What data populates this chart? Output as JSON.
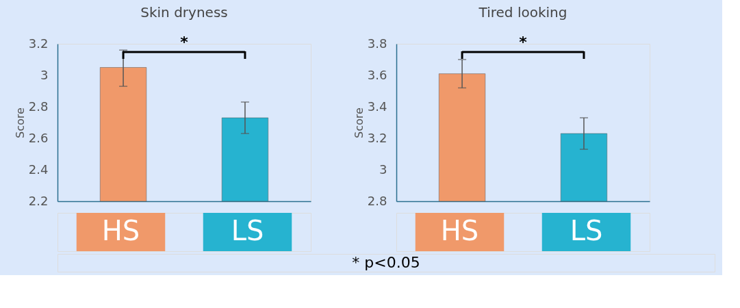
{
  "chart_data": [
    {
      "type": "bar",
      "title": "Skin dryness",
      "ylabel": "Score",
      "categories": [
        "HS",
        "LS"
      ],
      "values": [
        3.05,
        2.73
      ],
      "colors": [
        "#f0996a",
        "#26b3d0"
      ],
      "errors": [
        [
          2.93,
          3.16
        ],
        [
          2.63,
          2.83
        ]
      ],
      "ylim": [
        2.2,
        3.2
      ],
      "yticks": [
        2.2,
        2.4,
        2.6,
        2.8,
        3,
        3.2
      ],
      "grid": false,
      "legend": false,
      "annotations": [
        "*"
      ]
    },
    {
      "type": "bar",
      "title": "Tired looking",
      "ylabel": "Score",
      "categories": [
        "HS",
        "LS"
      ],
      "values": [
        3.61,
        3.23
      ],
      "colors": [
        "#f0996a",
        "#26b3d0"
      ],
      "errors": [
        [
          3.52,
          3.7
        ],
        [
          3.13,
          3.33
        ]
      ],
      "ylim": [
        2.8,
        3.8
      ],
      "yticks": [
        2.8,
        3,
        3.2,
        3.4,
        3.6,
        3.8
      ],
      "grid": false,
      "legend": false,
      "annotations": [
        "*",
        "* p<0.05"
      ]
    }
  ]
}
